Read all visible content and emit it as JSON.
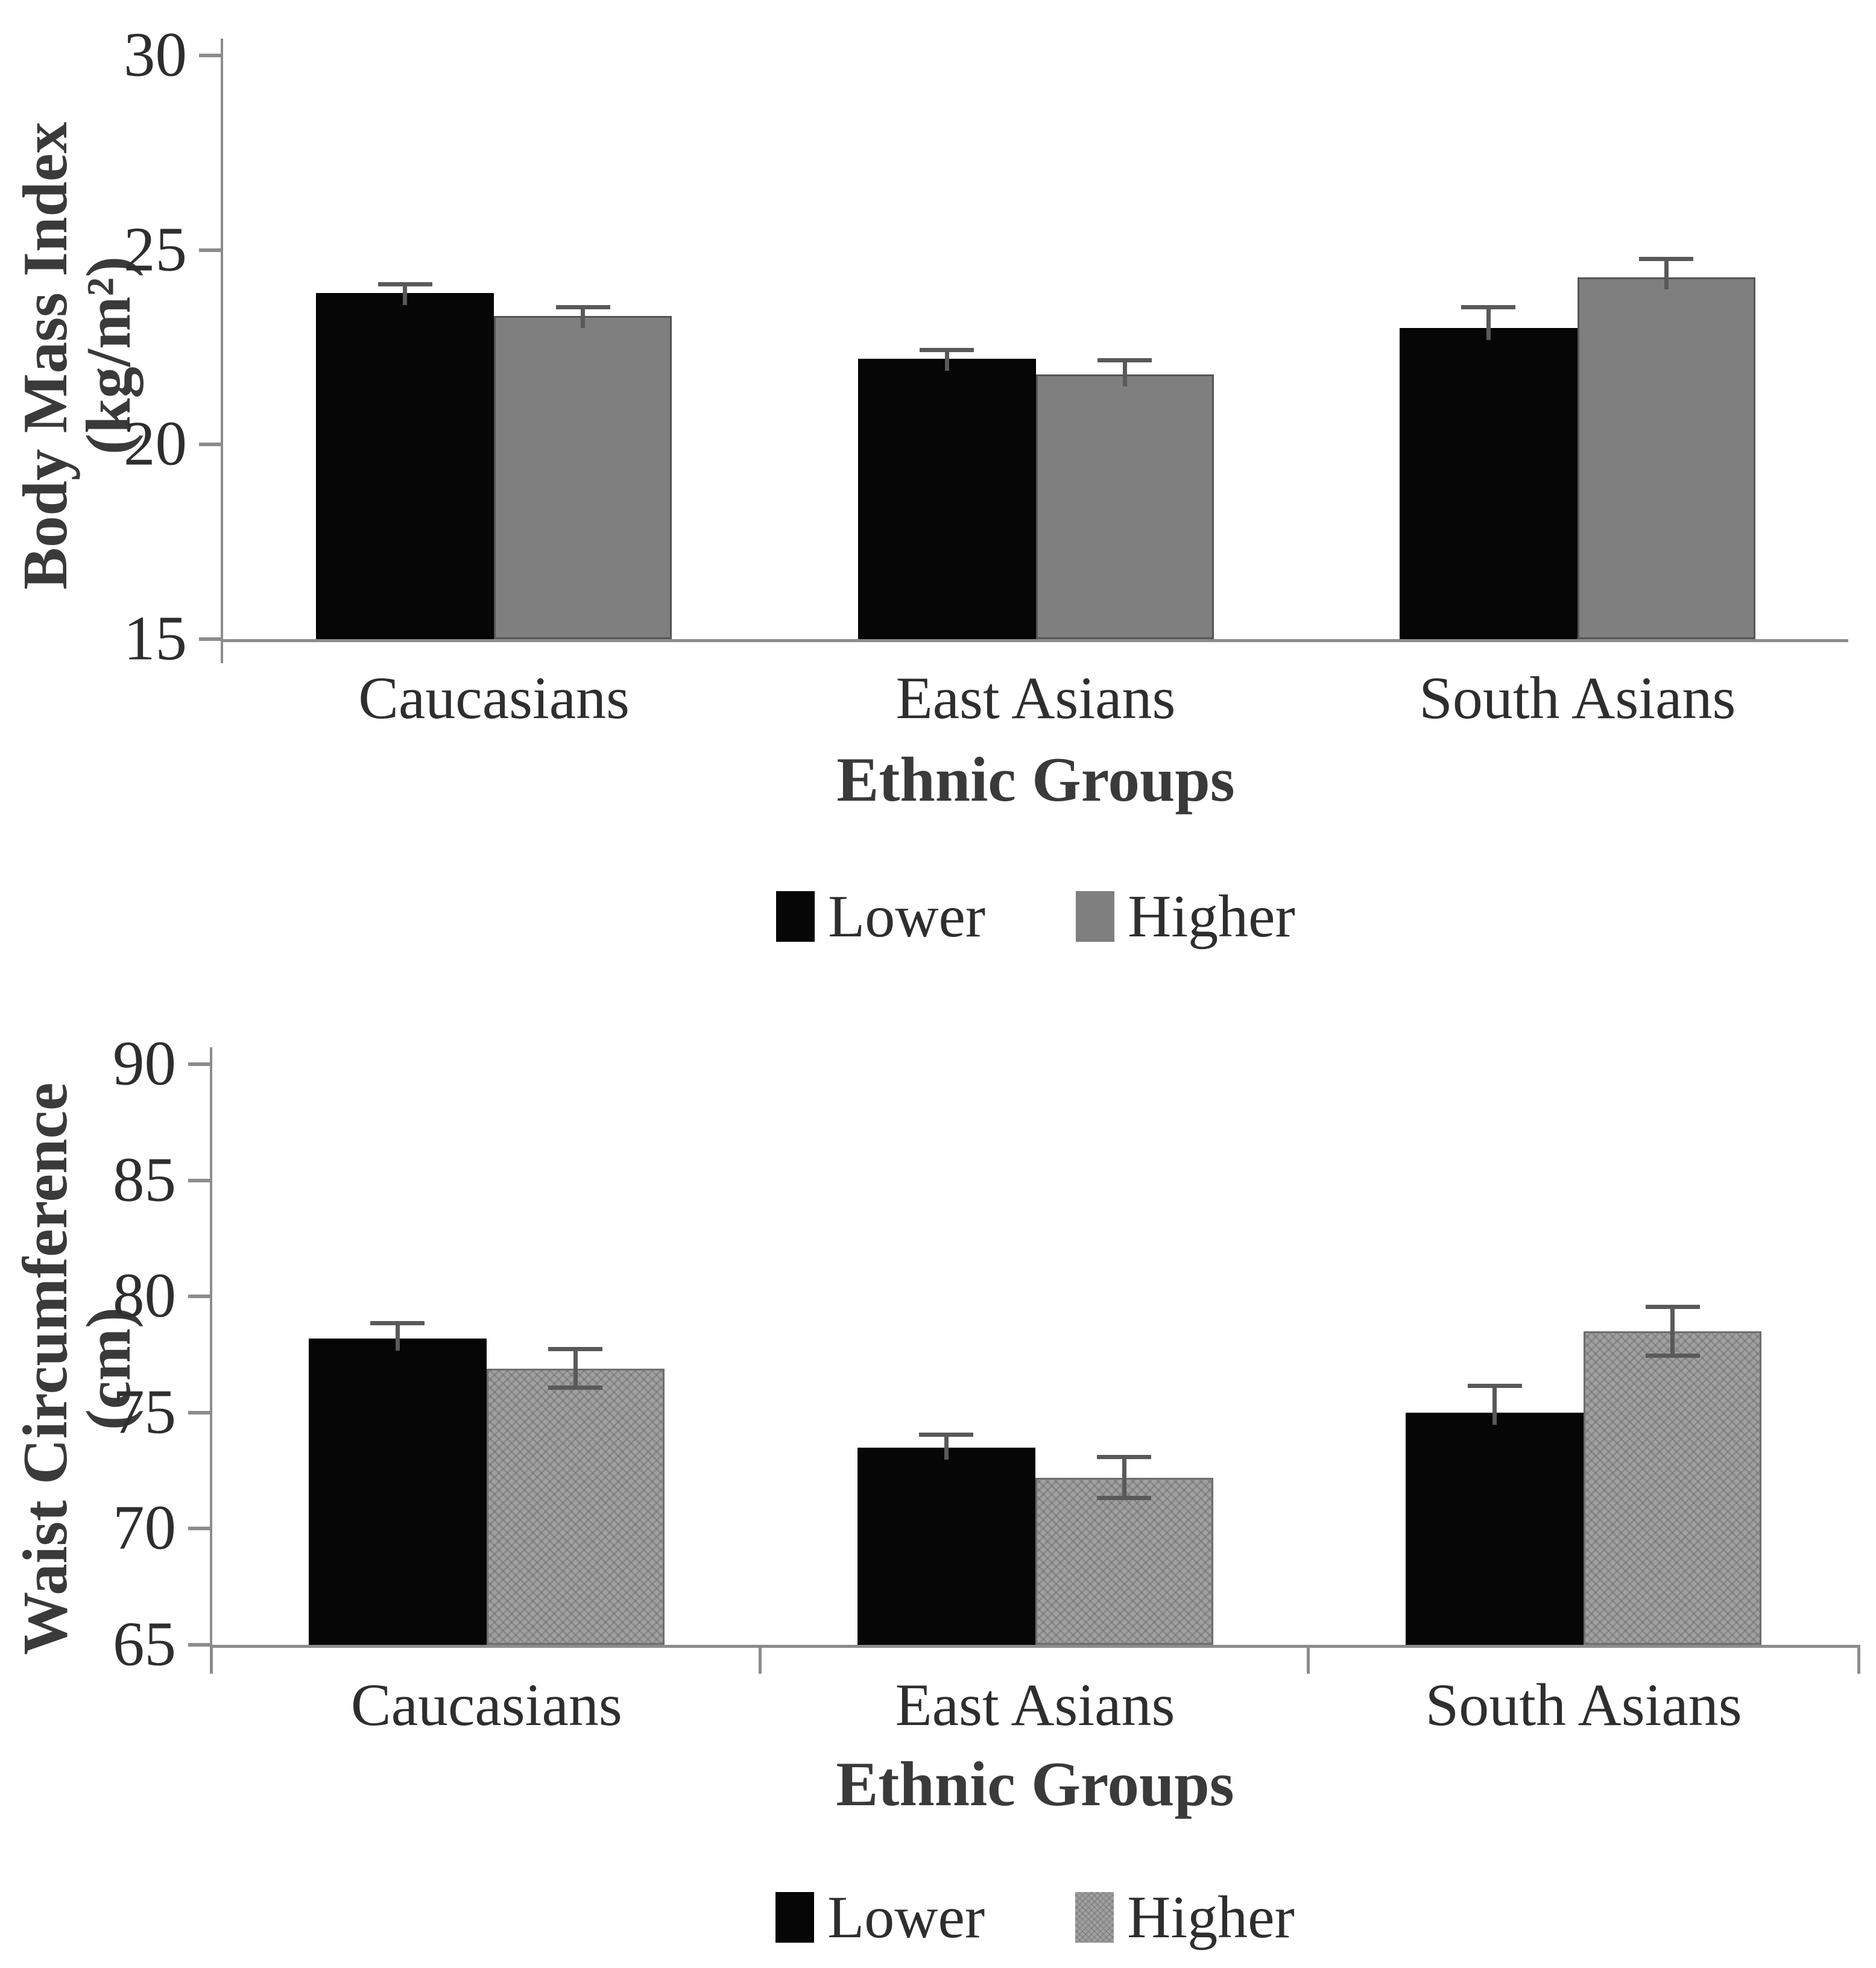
{
  "page": {
    "background": "#ffffff"
  },
  "colors": {
    "black_bar": "#060606",
    "gray_bar_solid": "#7f7f7f",
    "gray_bar_textured": "#a0a0a0",
    "bar_border": "#555555",
    "axis_line": "#8c8c8c",
    "error_bar": "#595959",
    "text": "#2e2e2e",
    "title_text": "#3a3a3a"
  },
  "legend": {
    "items": [
      {
        "label": "Lower",
        "swatch": "black"
      },
      {
        "label": "Higher",
        "swatch": "gray"
      }
    ]
  },
  "chart_data": [
    {
      "id": "bmi",
      "type": "bar",
      "title": "",
      "ylabel": "Body Mass Index (kg/m²)",
      "xlabel": "Ethnic Groups",
      "ylim": [
        15,
        30
      ],
      "yticks": [
        15,
        20,
        25,
        30
      ],
      "grid": false,
      "legend_position": "bottom",
      "categories": [
        "Caucasians",
        "East Asians",
        "South Asians"
      ],
      "series": [
        {
          "name": "Lower",
          "values": [
            23.9,
            22.2,
            23.0
          ],
          "errors": [
            0.2,
            0.2,
            0.5
          ],
          "error_sides": [
            "upper",
            "upper",
            "upper"
          ]
        },
        {
          "name": "Higher",
          "values": [
            23.3,
            21.8,
            24.3
          ],
          "errors": [
            0.2,
            0.35,
            0.45
          ],
          "error_sides": [
            "upper",
            "upper",
            "upper"
          ]
        }
      ]
    },
    {
      "id": "waist",
      "type": "bar",
      "title": "",
      "ylabel": "Waist Circumference (cm)",
      "xlabel": "Ethnic Groups",
      "ylim": [
        65,
        90
      ],
      "yticks": [
        65,
        70,
        75,
        80,
        85,
        90
      ],
      "grid": false,
      "legend_position": "bottom",
      "categories": [
        "Caucasians",
        "East Asians",
        "South Asians"
      ],
      "series": [
        {
          "name": "Lower",
          "values": [
            78.2,
            73.5,
            75.0
          ],
          "errors": [
            0.6,
            0.5,
            1.1
          ],
          "error_sides": [
            "upper",
            "upper",
            "upper"
          ]
        },
        {
          "name": "Higher",
          "values": [
            76.9,
            72.2,
            78.5
          ],
          "errors": [
            0.8,
            0.85,
            1.0
          ],
          "error_sides": [
            "both",
            "both",
            "both"
          ]
        }
      ]
    }
  ]
}
